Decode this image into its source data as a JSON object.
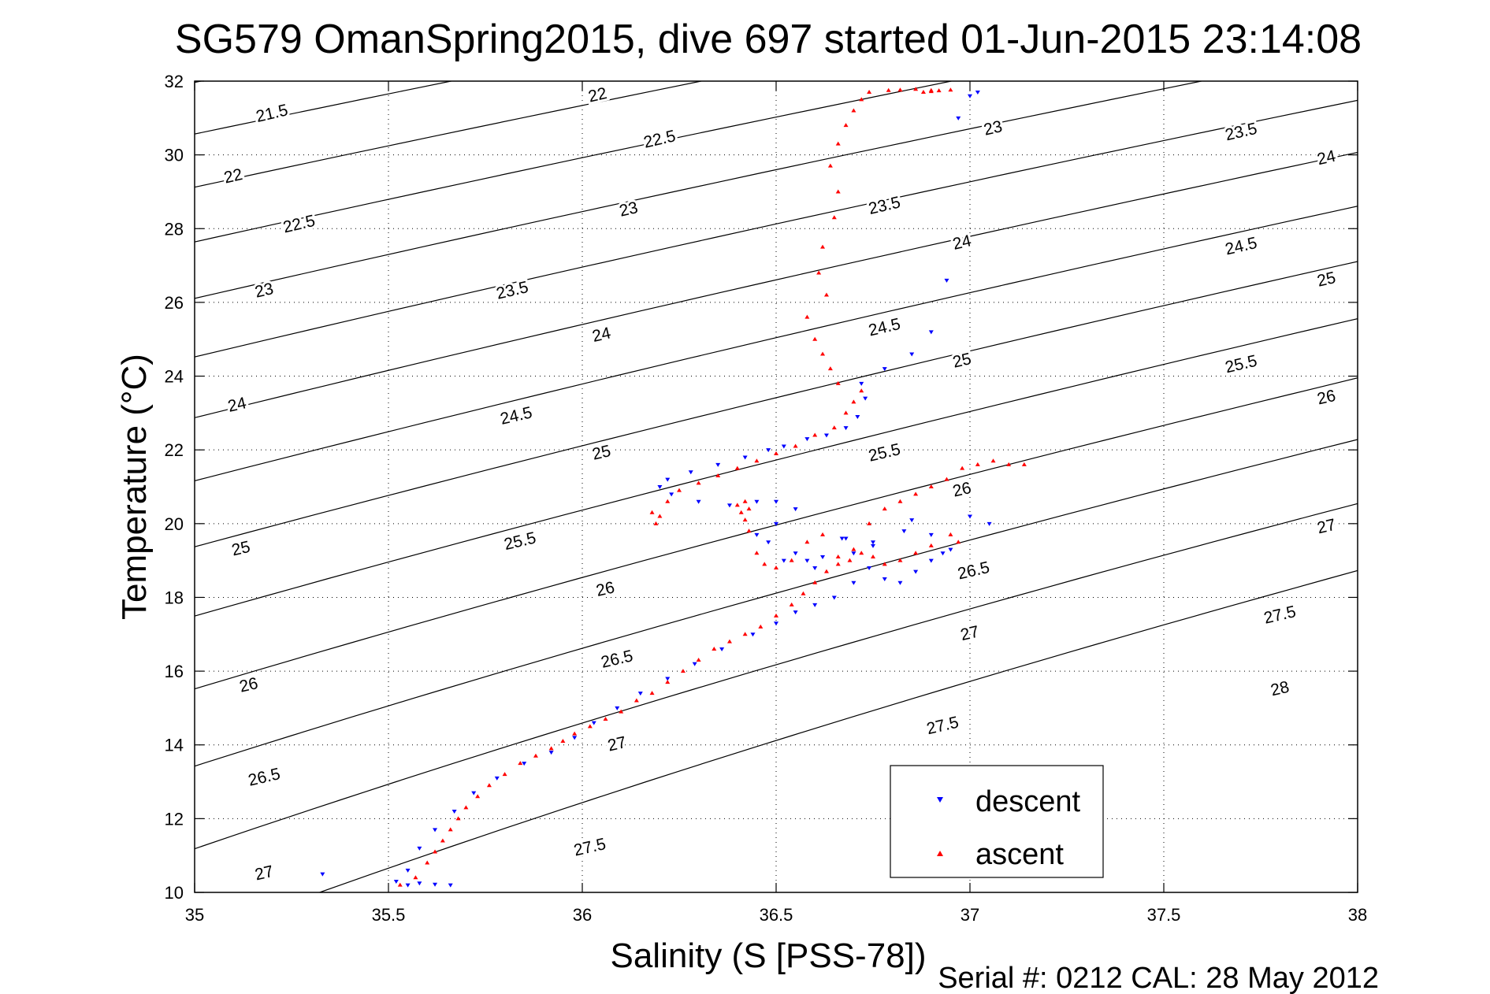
{
  "chart_data": {
    "type": "scatter",
    "title": "SG579 OmanSpring2015, dive 697 started 01-Jun-2015 23:14:08",
    "xlabel": "Salinity (S [PSS-78])",
    "ylabel": "Temperature (°C)",
    "footer": "Serial #: 0212  CAL: 28 May 2012",
    "xlim": [
      35,
      38
    ],
    "ylim": [
      10,
      32
    ],
    "xticks": [
      "35",
      "35.5",
      "36",
      "36.5",
      "37",
      "37.5",
      "38"
    ],
    "yticks": [
      "10",
      "12",
      "14",
      "16",
      "18",
      "20",
      "22",
      "24",
      "26",
      "28",
      "30",
      "32"
    ],
    "grid": true,
    "legend_position": "bottom-right",
    "colors": {
      "descent": "#0000ff",
      "ascent": "#ff0000",
      "contour": "#000000"
    },
    "series": [
      {
        "name": "descent",
        "marker": "triangle-down",
        "x": [
          35.33,
          35.52,
          35.55,
          35.58,
          35.62,
          35.66,
          35.55,
          35.58,
          35.62,
          35.67,
          35.72,
          35.78,
          35.85,
          35.92,
          35.98,
          36.03,
          36.09,
          36.15,
          36.22,
          36.29,
          36.36,
          36.44,
          36.5,
          36.55,
          36.6,
          36.65,
          36.7,
          36.74,
          36.78,
          36.82,
          36.86,
          36.9,
          36.93,
          36.95,
          36.9,
          36.83,
          36.75,
          36.68,
          36.6,
          36.52,
          36.48,
          36.45,
          36.5,
          36.55,
          36.58,
          36.62,
          36.67,
          36.7,
          36.75,
          36.85,
          37.0,
          37.05,
          36.55,
          36.5,
          36.45,
          36.38,
          36.3,
          36.23,
          36.2,
          36.22,
          36.28,
          36.35,
          36.42,
          36.48,
          36.52,
          36.58,
          36.63,
          36.68,
          36.71,
          36.73,
          36.72,
          36.78,
          36.85,
          36.9,
          36.94,
          36.97,
          37.0,
          37.02
        ],
        "y": [
          10.5,
          10.3,
          10.2,
          10.25,
          10.22,
          10.2,
          10.6,
          11.2,
          11.7,
          12.2,
          12.7,
          13.1,
          13.5,
          13.8,
          14.2,
          14.6,
          15.0,
          15.4,
          15.8,
          16.2,
          16.6,
          17.0,
          17.3,
          17.6,
          17.8,
          18.0,
          18.4,
          18.8,
          18.5,
          18.4,
          18.7,
          19.0,
          19.2,
          19.3,
          19.7,
          19.8,
          19.5,
          19.6,
          18.8,
          19.0,
          19.5,
          19.7,
          20.0,
          19.2,
          19.0,
          19.1,
          19.6,
          19.2,
          19.4,
          20.1,
          20.2,
          20.0,
          20.4,
          20.6,
          20.6,
          20.5,
          20.6,
          20.8,
          21.0,
          21.2,
          21.4,
          21.6,
          21.8,
          22.0,
          22.1,
          22.3,
          22.4,
          22.6,
          22.9,
          23.4,
          23.8,
          24.2,
          24.6,
          25.2,
          26.6,
          31.0,
          31.6,
          31.7
        ]
      },
      {
        "name": "ascent",
        "marker": "triangle-up",
        "x": [
          35.53,
          35.57,
          35.6,
          35.62,
          35.64,
          35.66,
          35.68,
          35.7,
          35.73,
          35.76,
          35.8,
          35.84,
          35.88,
          35.92,
          35.95,
          35.98,
          36.02,
          36.06,
          36.1,
          36.14,
          36.18,
          36.22,
          36.26,
          36.3,
          36.34,
          36.38,
          36.42,
          36.46,
          36.5,
          36.54,
          36.57,
          36.6,
          36.63,
          36.66,
          36.69,
          36.72,
          36.75,
          36.78,
          36.82,
          36.86,
          36.9,
          36.95,
          36.97,
          36.43,
          36.4,
          36.42,
          36.41,
          36.42,
          36.43,
          36.45,
          36.47,
          36.5,
          36.54,
          36.58,
          36.62,
          36.66,
          36.7,
          36.74,
          36.78,
          36.82,
          36.86,
          36.9,
          36.94,
          36.98,
          37.02,
          37.06,
          37.1,
          37.14,
          36.19,
          36.2,
          36.18,
          36.22,
          36.25,
          36.3,
          36.35,
          36.4,
          36.45,
          36.5,
          36.55,
          36.6,
          36.65,
          36.68,
          36.7,
          36.72,
          36.66,
          36.64,
          36.62,
          36.6,
          36.58,
          36.63,
          36.61,
          36.62,
          36.65,
          36.66,
          36.64,
          36.66,
          36.68,
          36.7,
          36.72,
          36.74,
          36.79,
          36.82,
          36.86,
          36.9,
          36.88,
          36.9,
          36.92,
          36.95
        ],
        "y": [
          10.2,
          10.4,
          10.8,
          11.1,
          11.4,
          11.7,
          12.0,
          12.3,
          12.6,
          12.9,
          13.2,
          13.5,
          13.7,
          13.9,
          14.1,
          14.3,
          14.5,
          14.7,
          14.9,
          15.2,
          15.4,
          15.7,
          16.0,
          16.3,
          16.6,
          16.8,
          17.0,
          17.2,
          17.5,
          17.8,
          18.1,
          18.4,
          18.7,
          18.9,
          19.0,
          19.2,
          19.1,
          18.9,
          19.0,
          19.2,
          19.4,
          19.7,
          19.5,
          20.4,
          20.5,
          20.6,
          20.3,
          20.1,
          19.8,
          19.2,
          18.9,
          18.8,
          19.0,
          19.5,
          19.7,
          19.1,
          19.3,
          20.0,
          20.4,
          20.6,
          20.8,
          21.0,
          21.2,
          21.5,
          21.6,
          21.7,
          21.6,
          21.6,
          20.0,
          20.2,
          20.3,
          20.6,
          20.9,
          21.1,
          21.3,
          21.5,
          21.7,
          21.9,
          22.1,
          22.4,
          22.6,
          23.0,
          23.3,
          23.6,
          23.8,
          24.2,
          24.6,
          25.0,
          25.6,
          26.2,
          26.8,
          27.5,
          28.3,
          29.0,
          29.7,
          30.3,
          30.8,
          31.2,
          31.5,
          31.7,
          31.75,
          31.76,
          31.78,
          31.75,
          31.7,
          31.72,
          31.74,
          31.76
        ]
      }
    ],
    "isopycnals": {
      "line_levels": [
        21.5,
        22,
        22.5,
        23,
        23.5,
        24,
        24.5,
        25,
        25.5,
        26,
        26.5,
        27,
        27.5,
        28
      ],
      "labels": [
        {
          "text": "21.5",
          "s": 35.2,
          "t": 31.1
        },
        {
          "text": "22",
          "s": 35.1,
          "t": 29.4
        },
        {
          "text": "22.5",
          "s": 35.27,
          "t": 28.1
        },
        {
          "text": "23",
          "s": 35.18,
          "t": 26.3
        },
        {
          "text": "24",
          "s": 35.11,
          "t": 23.2
        },
        {
          "text": "25",
          "s": 35.12,
          "t": 19.3
        },
        {
          "text": "26",
          "s": 35.14,
          "t": 15.6
        },
        {
          "text": "26.5",
          "s": 35.18,
          "t": 13.1
        },
        {
          "text": "27",
          "s": 35.18,
          "t": 10.5
        },
        {
          "text": "22",
          "s": 36.04,
          "t": 31.6
        },
        {
          "text": "22.5",
          "s": 36.2,
          "t": 30.4
        },
        {
          "text": "23",
          "s": 36.12,
          "t": 28.5
        },
        {
          "text": "23.5",
          "s": 35.82,
          "t": 26.3
        },
        {
          "text": "24",
          "s": 36.05,
          "t": 25.1
        },
        {
          "text": "24.5",
          "s": 35.83,
          "t": 22.9
        },
        {
          "text": "25",
          "s": 36.05,
          "t": 21.9
        },
        {
          "text": "25.5",
          "s": 35.84,
          "t": 19.5
        },
        {
          "text": "26",
          "s": 36.06,
          "t": 18.2
        },
        {
          "text": "26.5",
          "s": 36.09,
          "t": 16.3
        },
        {
          "text": "27",
          "s": 36.09,
          "t": 14.0
        },
        {
          "text": "27.5",
          "s": 36.02,
          "t": 11.2
        },
        {
          "text": "23",
          "s": 37.06,
          "t": 30.7
        },
        {
          "text": "23.5",
          "s": 36.78,
          "t": 28.6
        },
        {
          "text": "24",
          "s": 36.98,
          "t": 27.6
        },
        {
          "text": "24.5",
          "s": 36.78,
          "t": 25.3
        },
        {
          "text": "25",
          "s": 36.98,
          "t": 24.4
        },
        {
          "text": "25.5",
          "s": 36.78,
          "t": 21.9
        },
        {
          "text": "26",
          "s": 36.98,
          "t": 20.9
        },
        {
          "text": "26.5",
          "s": 37.01,
          "t": 18.7
        },
        {
          "text": "27",
          "s": 37.0,
          "t": 17.0
        },
        {
          "text": "27.5",
          "s": 36.93,
          "t": 14.5
        },
        {
          "text": "23.5",
          "s": 37.7,
          "t": 30.6
        },
        {
          "text": "24",
          "s": 37.92,
          "t": 29.9
        },
        {
          "text": "24.5",
          "s": 37.7,
          "t": 27.5
        },
        {
          "text": "25",
          "s": 37.92,
          "t": 26.6
        },
        {
          "text": "25.5",
          "s": 37.7,
          "t": 24.3
        },
        {
          "text": "26",
          "s": 37.92,
          "t": 23.4
        },
        {
          "text": "27",
          "s": 37.92,
          "t": 19.9
        },
        {
          "text": "27.5",
          "s": 37.8,
          "t": 17.5
        },
        {
          "text": "28",
          "s": 37.8,
          "t": 15.5
        }
      ]
    }
  }
}
